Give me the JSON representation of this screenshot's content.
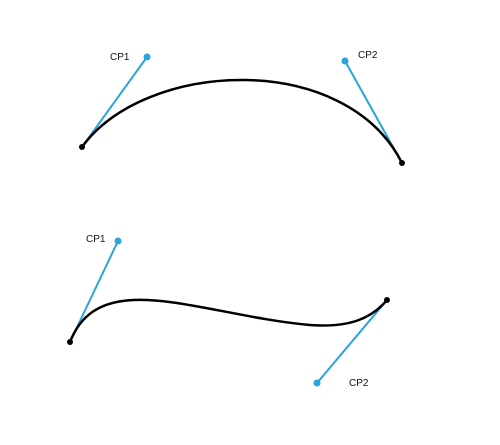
{
  "colors": {
    "curve": "#000000",
    "handle": "#2aa4dc",
    "endpoint": "#000000",
    "background": "#ffffff"
  },
  "diagrams": [
    {
      "name": "curve-1",
      "cp1_label": "CP1",
      "cp2_label": "CP2"
    },
    {
      "name": "curve-2",
      "cp1_label": "CP1",
      "cp2_label": "CP2"
    }
  ]
}
